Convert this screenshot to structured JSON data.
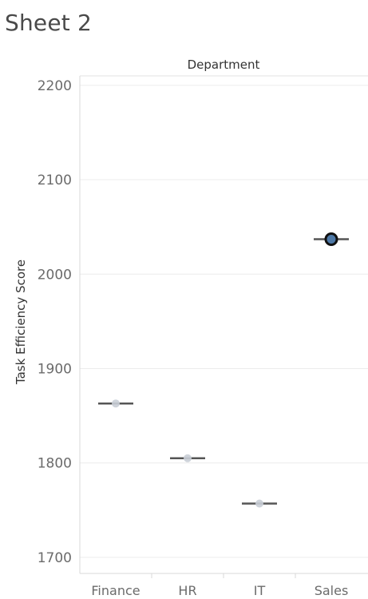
{
  "sheet": {
    "title": "Sheet 2"
  },
  "chart_data": {
    "type": "scatter",
    "title": "",
    "header_label": "Department",
    "xlabel": "",
    "ylabel": "Task Efficiency Score",
    "categories": [
      "Finance",
      "HR",
      "IT",
      "Sales"
    ],
    "series": [
      {
        "values": [
          1863,
          1805,
          1757,
          2037
        ]
      }
    ],
    "ylim": [
      1683,
      2210
    ],
    "yticks": [
      1700,
      1800,
      1900,
      2000,
      2100,
      2200
    ],
    "grid": true,
    "highlighted_category": "Sales",
    "colors": {
      "point": "#c9ced6",
      "median_line": "#555555",
      "highlight_fill": "#4e79a7",
      "highlight_stroke": "#111111",
      "gridline": "#ececec",
      "axis": "#d9d9d9"
    }
  }
}
